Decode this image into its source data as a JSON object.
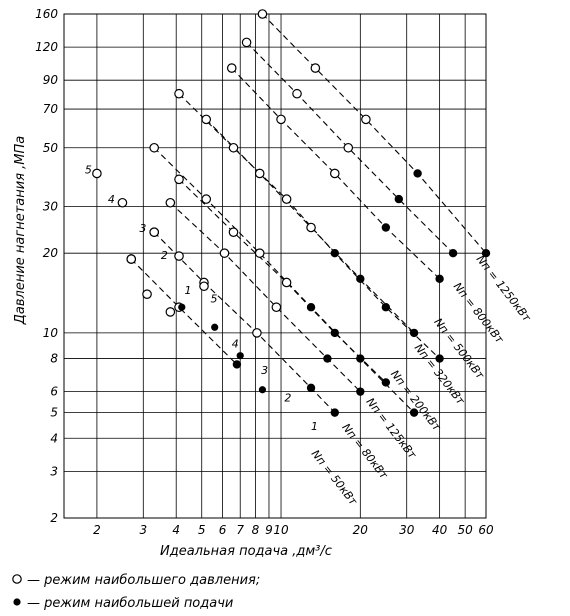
{
  "chart_data": {
    "type": "scatter",
    "scale": "log-log",
    "xlabel": "Идеальная подача ,дм³/с",
    "ylabel": "Давление нагнетания ,МПа",
    "xlim": [
      1.5,
      60
    ],
    "ylim": [
      2,
      160
    ],
    "x_ticks": [
      2,
      3,
      4,
      5,
      6,
      7,
      8,
      9,
      10,
      20,
      30,
      40,
      50,
      60
    ],
    "y_ticks": [
      2,
      3,
      4,
      5,
      6,
      8,
      10,
      20,
      30,
      50,
      70,
      90,
      120,
      160
    ],
    "grid": true,
    "legend": [
      {
        "marker": "open-circle",
        "label": "— режим наибольшего давления;"
      },
      {
        "marker": "filled-circle",
        "label": "— режим наибольшей подачи"
      }
    ],
    "series": [
      {
        "name": "Nп = 50кВт",
        "x": [
          2.7,
          4.1,
          6.8
        ],
        "y": [
          19,
          12.5,
          7.6
        ]
      },
      {
        "name": "Nп = 80кВт",
        "x": [
          3.3,
          5.1,
          8.1,
          13,
          16
        ],
        "y": [
          24,
          15.5,
          10,
          6.2,
          5
        ]
      },
      {
        "name": "Nп = 125кВт",
        "x": [
          3.8,
          6.1,
          9.6,
          15,
          20
        ],
        "y": [
          31,
          20,
          12.5,
          8,
          6
        ]
      },
      {
        "name": "Nп = 200кВт",
        "x": [
          4.1,
          6.6,
          10.5,
          16,
          25
        ],
        "y": [
          38,
          24,
          15.5,
          10,
          6.5
        ]
      },
      {
        "name": "Nп = 320кВт",
        "x": [
          3.3,
          5.2,
          8.3,
          13,
          20,
          32
        ],
        "y": [
          50,
          32,
          20,
          12.5,
          8,
          5
        ]
      },
      {
        "name": "Nп = 500кВт",
        "x": [
          5.2,
          8.3,
          13,
          20,
          32
        ],
        "y": [
          64,
          40,
          25,
          16,
          10
        ]
      },
      {
        "name": "Nп = 800кВт",
        "x": [
          4.1,
          6.6,
          10.5,
          16,
          25,
          40
        ],
        "y": [
          80,
          50,
          32,
          20,
          12.5,
          8
        ]
      },
      {
        "name": "Nп = 1250кВт",
        "x": [
          6.5,
          10,
          16,
          25,
          40
        ],
        "y": [
          100,
          64,
          40,
          25,
          16
        ]
      },
      {
        "name": "",
        "x": [
          7.4,
          11.5,
          18,
          28,
          45
        ],
        "y": [
          125,
          80,
          50,
          32,
          20
        ]
      },
      {
        "name": "",
        "x": [
          8.5,
          13.5,
          21,
          33,
          60
        ],
        "y": [
          160,
          100,
          64,
          40,
          20
        ]
      }
    ],
    "points": {
      "open": [
        {
          "x": 2.0,
          "y": 40
        },
        {
          "x": 2.5,
          "y": 31
        },
        {
          "x": 3.3,
          "y": 24
        },
        {
          "x": 4.1,
          "y": 19.5
        },
        {
          "x": 5.1,
          "y": 15
        },
        {
          "x": 2.7,
          "y": 19
        },
        {
          "x": 3.1,
          "y": 14
        },
        {
          "x": 3.8,
          "y": 12
        }
      ],
      "filled": [
        {
          "x": 4.2,
          "y": 12.5
        },
        {
          "x": 5.6,
          "y": 10.5
        },
        {
          "x": 7.0,
          "y": 8.2
        },
        {
          "x": 8.5,
          "y": 6.1
        }
      ]
    },
    "curve_labels": [
      "5",
      "4",
      "3",
      "2",
      "1",
      "5",
      "4",
      "3",
      "2",
      "1"
    ],
    "power_labels": [
      "Nп = 1250кВт",
      "Nп = 800кВт",
      "Nп = 500кВт",
      "Nп = 320кВт",
      "Nп = 200кВт",
      "Nп = 125кВт",
      "Nп = 80кВт",
      "Nп = 50кВт"
    ]
  }
}
